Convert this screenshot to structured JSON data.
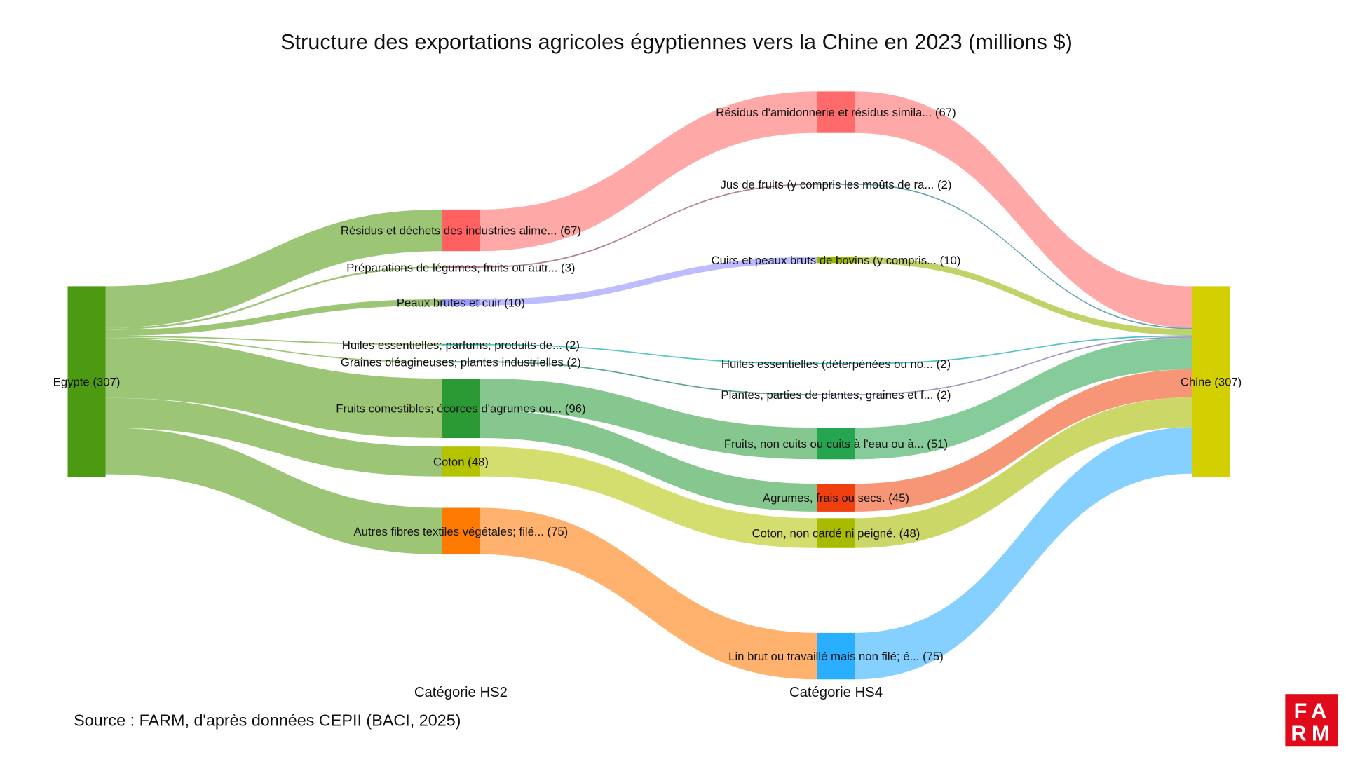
{
  "chart_data": {
    "type": "sankey",
    "title": "Structure des exportations agricoles égyptiennes vers la Chine en 2023 (millions $)",
    "column_labels": [
      "Catégorie HS2",
      "Catégorie HS4"
    ],
    "source": "Source : FARM, d'après données CEPII (BACI, 2025)",
    "unit": "millions $",
    "nodes": [
      {
        "id": "egypte",
        "col": 0,
        "label": "Egypte (307)",
        "value": 307,
        "color": "#4c9a12"
      },
      {
        "id": "residus",
        "col": 1,
        "label": "Résidus et déchets des industries alime... (67)",
        "value": 67,
        "color": "#ff6060"
      },
      {
        "id": "prep",
        "col": 1,
        "label": "Préparations de légumes, fruits ou autr... (3)",
        "value": 3,
        "color": "#b07080"
      },
      {
        "id": "peaux",
        "col": 1,
        "label": "Peaux brutes et cuir (10)",
        "value": 10,
        "color": "#9a9aff"
      },
      {
        "id": "huiles",
        "col": 1,
        "label": "Huiles essentielles; parfums; produits de... (2)",
        "value": 2,
        "color": "#30b8b8"
      },
      {
        "id": "graines",
        "col": 1,
        "label": "Graines oléagineuses; plantes industrielles (2)",
        "value": 2,
        "color": "#309080"
      },
      {
        "id": "fruits",
        "col": 1,
        "label": "Fruits comestibles; écorces d'agrumes ou... (96)",
        "value": 96,
        "color": "#2a9a35"
      },
      {
        "id": "coton",
        "col": 1,
        "label": "Coton (48)",
        "value": 48,
        "color": "#b5c200"
      },
      {
        "id": "autres",
        "col": 1,
        "label": "Autres fibres textiles végétales; filé... (75)",
        "value": 75,
        "color": "#ff7a00"
      },
      {
        "id": "amidon",
        "col": 2,
        "label": "Résidus d'amidonnerie et résidus simila... (67)",
        "value": 67,
        "color": "#ff6b6b"
      },
      {
        "id": "jus",
        "col": 2,
        "label": "Jus de fruits (y compris les moûts de ra... (2)",
        "value": 2,
        "color": "#5aa0b0"
      },
      {
        "id": "cuirs",
        "col": 2,
        "label": "Cuirs et peaux bruts de bovins (y compris... (10)",
        "value": 10,
        "color": "#9ab800"
      },
      {
        "id": "huilesE",
        "col": 2,
        "label": "Huiles essentielles (déterpénées ou no... (2)",
        "value": 2,
        "color": "#40c0c8"
      },
      {
        "id": "plantes",
        "col": 2,
        "label": "Plantes, parties de plantes, graines et f... (2)",
        "value": 2,
        "color": "#9080c0"
      },
      {
        "id": "fruitsN",
        "col": 2,
        "label": "Fruits, non cuits ou cuits à l'eau ou à... (51)",
        "value": 51,
        "color": "#25a550"
      },
      {
        "id": "agrumes",
        "col": 2,
        "label": "Agrumes, frais ou secs. (45)",
        "value": 45,
        "color": "#f04010"
      },
      {
        "id": "cotonN",
        "col": 2,
        "label": "Coton, non cardé ni peigné. (48)",
        "value": 48,
        "color": "#a8bb00"
      },
      {
        "id": "lin",
        "col": 2,
        "label": "Lin brut ou travaillé mais non filé; é... (75)",
        "value": 75,
        "color": "#2aaeff"
      },
      {
        "id": "chine",
        "col": 3,
        "label": "Chine (307)",
        "value": 307,
        "color": "#d4cf00"
      }
    ],
    "links": [
      {
        "source": "egypte",
        "target": "residus",
        "value": 67,
        "color": "#97c26e"
      },
      {
        "source": "egypte",
        "target": "prep",
        "value": 3,
        "color": "#97c26e"
      },
      {
        "source": "egypte",
        "target": "peaux",
        "value": 10,
        "color": "#97c26e"
      },
      {
        "source": "egypte",
        "target": "huiles",
        "value": 2,
        "color": "#97c26e"
      },
      {
        "source": "egypte",
        "target": "graines",
        "value": 2,
        "color": "#97c26e"
      },
      {
        "source": "egypte",
        "target": "fruits",
        "value": 96,
        "color": "#97c26e"
      },
      {
        "source": "egypte",
        "target": "coton",
        "value": 48,
        "color": "#97c26e"
      },
      {
        "source": "egypte",
        "target": "autres",
        "value": 75,
        "color": "#97c26e"
      },
      {
        "source": "residus",
        "target": "amidon",
        "value": 67,
        "color": "#ffa3a3"
      },
      {
        "source": "prep",
        "target": "jus",
        "value": 2,
        "color": "#b07888"
      },
      {
        "source": "peaux",
        "target": "cuirs",
        "value": 10,
        "color": "#b8b8ff"
      },
      {
        "source": "huiles",
        "target": "huilesE",
        "value": 2,
        "color": "#50c4c4"
      },
      {
        "source": "graines",
        "target": "plantes",
        "value": 2,
        "color": "#50a090"
      },
      {
        "source": "fruits",
        "target": "fruitsN",
        "value": 51,
        "color": "#80c48a"
      },
      {
        "source": "fruits",
        "target": "agrumes",
        "value": 45,
        "color": "#80c48a"
      },
      {
        "source": "coton",
        "target": "cotonN",
        "value": 48,
        "color": "#d2dc66"
      },
      {
        "source": "autres",
        "target": "lin",
        "value": 75,
        "color": "#ffad66"
      },
      {
        "source": "amidon",
        "target": "chine",
        "value": 67,
        "color": "#ffa3a3"
      },
      {
        "source": "jus",
        "target": "chine",
        "value": 2,
        "color": "#5aa0b0"
      },
      {
        "source": "cuirs",
        "target": "chine",
        "value": 10,
        "color": "#c0d060"
      },
      {
        "source": "huilesE",
        "target": "chine",
        "value": 2,
        "color": "#50c0c8"
      },
      {
        "source": "plantes",
        "target": "chine",
        "value": 2,
        "color": "#a090c0"
      },
      {
        "source": "fruitsN",
        "target": "chine",
        "value": 51,
        "color": "#80c995"
      },
      {
        "source": "agrumes",
        "target": "chine",
        "value": 45,
        "color": "#f78f70"
      },
      {
        "source": "cotonN",
        "target": "chine",
        "value": 48,
        "color": "#c8d660"
      },
      {
        "source": "lin",
        "target": "chine",
        "value": 75,
        "color": "#80ceff"
      }
    ]
  },
  "logo": {
    "text_line1": "FA",
    "text_line2": "RM",
    "color": "#e00a1a"
  }
}
